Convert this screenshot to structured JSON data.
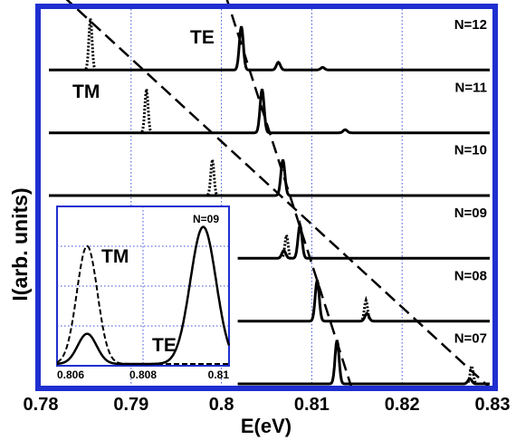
{
  "chart_data": {
    "type": "line",
    "xlabel": "E(eV)",
    "ylabel": "I(arb. units)",
    "xlim": [
      0.78,
      0.83
    ],
    "xticks": [
      "0.78",
      "0.79",
      "0.8",
      "0.81",
      "0.82",
      "0.83"
    ],
    "xtick_values": [
      0.78,
      0.79,
      0.8,
      0.81,
      0.82,
      0.83
    ],
    "grid": "vertical dotted",
    "colors": {
      "frame": "#1f2fd0",
      "grid": "#3a4fd8",
      "trace": "#000000"
    },
    "series_labels": {
      "te": "TE",
      "tm": "TM"
    },
    "panels": [
      {
        "label": "N=12",
        "te_peak": 0.8022,
        "te_height": 0.85,
        "tm_peak": 0.7855,
        "tm_height": 1.0,
        "te_extra": [
          [
            0.8063,
            0.15
          ],
          [
            0.8112,
            0.05
          ]
        ]
      },
      {
        "label": "N=11",
        "te_peak": 0.8045,
        "te_height": 0.85,
        "tm_peak": 0.7917,
        "tm_height": 0.85,
        "te_extra": [
          [
            0.8137,
            0.06
          ]
        ]
      },
      {
        "label": "N=10",
        "te_peak": 0.8068,
        "te_height": 0.7,
        "tm_peak": 0.799,
        "tm_height": 0.7,
        "te_extra": []
      },
      {
        "label": "N=09",
        "te_peak": 0.8087,
        "te_height": 0.65,
        "tm_peak": 0.8072,
        "tm_height": 0.45,
        "te_extra": [
          [
            0.8069,
            0.15
          ]
        ]
      },
      {
        "label": "N=08",
        "te_peak": 0.8106,
        "te_height": 0.8,
        "tm_peak": 0.816,
        "tm_height": 0.4,
        "te_extra": [
          [
            0.8161,
            0.15
          ]
        ]
      },
      {
        "label": "N=07",
        "te_peak": 0.8128,
        "te_height": 0.85,
        "tm_peak": 0.8277,
        "tm_height": 0.35,
        "te_extra": [
          [
            0.8275,
            0.1
          ]
        ]
      }
    ],
    "trend_lines": [
      {
        "series": "TM",
        "x": [
          0.7825,
          0.83
        ],
        "y": [
          13.4,
          6.6
        ]
      },
      {
        "series": "TE",
        "x": [
          0.8005,
          0.8145
        ],
        "y": [
          13.4,
          6.6
        ]
      }
    ],
    "inset": {
      "label": "N=09",
      "xlim": [
        0.806,
        0.81
      ],
      "xticks": [
        "0.806",
        "0.808",
        "0.81"
      ],
      "xtick_values": [
        0.806,
        0.808,
        0.81
      ],
      "tm": {
        "peak": 0.8067,
        "height": 0.86,
        "width": 0.00024
      },
      "te": {
        "peak": 0.8086,
        "height": 0.22,
        "peak2": 0.8094,
        "height2": 1.0,
        "width": 0.00022
      },
      "te_main": {
        "peak": 0.8094,
        "height": 1.0,
        "width": 0.0003
      },
      "te_shoulder": {
        "peak": 0.8067,
        "height": 0.22,
        "width": 0.00022
      }
    }
  }
}
